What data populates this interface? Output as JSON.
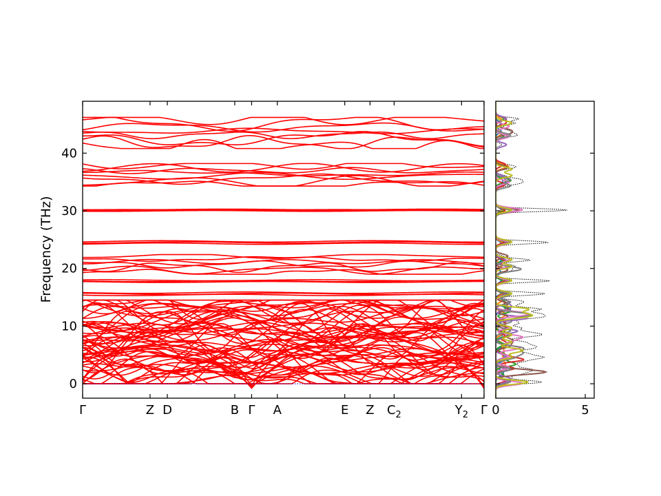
{
  "chart_data": [
    {
      "type": "line",
      "ylabel": "Frequency (THz)",
      "ylim": [
        -2.5,
        49
      ],
      "yticks": [
        0,
        10,
        20,
        30,
        40
      ],
      "kpath_ticks": [
        {
          "pos": 0.0,
          "label": "Γ"
        },
        {
          "pos": 0.168,
          "label": "Z"
        },
        {
          "pos": 0.211,
          "label": "D"
        },
        {
          "pos": 0.379,
          "label": "B"
        },
        {
          "pos": 0.421,
          "label": "Γ"
        },
        {
          "pos": 0.485,
          "label": "A"
        },
        {
          "pos": 0.653,
          "label": "E"
        },
        {
          "pos": 0.716,
          "label": "Z"
        },
        {
          "pos": 0.776,
          "label": "C",
          "sub": "2"
        },
        {
          "pos": 0.944,
          "label": "Y",
          "sub": "2"
        },
        {
          "pos": 1.0,
          "label": "Γ"
        }
      ],
      "xlim": [
        0,
        1
      ],
      "band_color": "#ff0000",
      "zero_line_color": "#0000cc",
      "flat_band_groups_THz": [
        {
          "center": 30.1,
          "spread": 0.25,
          "count": 4
        },
        {
          "center": 24.5,
          "spread": 0.4,
          "count": 3
        },
        {
          "center": 17.8,
          "spread": 0.3,
          "count": 3
        },
        {
          "center": 15.6,
          "spread": 0.4,
          "count": 3
        }
      ],
      "dispersive_band_ranges_THz": [
        {
          "min": 40.8,
          "max": 46.2,
          "count": 8
        },
        {
          "min": 34.3,
          "max": 38.2,
          "count": 8
        },
        {
          "min": 19.0,
          "max": 22.4,
          "count": 7
        },
        {
          "min": 0.0,
          "max": 14.5,
          "count": 60
        }
      ]
    },
    {
      "type": "area",
      "xlim": [
        0,
        5.5
      ],
      "xticks": [
        0,
        5
      ],
      "ylim": [
        -2.5,
        49
      ],
      "series_colors": [
        "#1f77b4",
        "#ff7f0e",
        "#2ca02c",
        "#d62728",
        "#9467bd",
        "#8c564b",
        "#e377c2",
        "#7f7f7f",
        "#bcbd22"
      ],
      "total_line_color": "#000000",
      "total_line_style": "dotted"
    }
  ]
}
